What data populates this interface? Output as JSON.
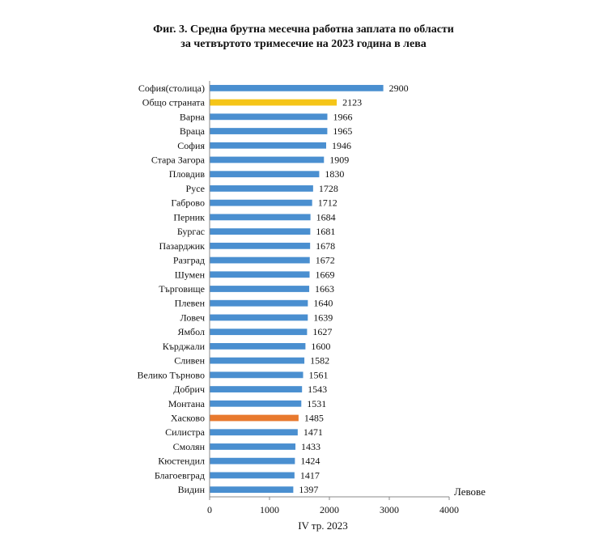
{
  "chart_data": {
    "type": "bar",
    "orientation": "horizontal",
    "title": "Фиг. 3. Средна брутна месечна работна заплата по области",
    "subtitle": "за четвъртото тримесечие на 2023 година в лева",
    "categories": [
      "София(столица)",
      "Общо страната",
      "Варна",
      "Враца",
      "София",
      "Стара Загора",
      "Пловдив",
      "Русе",
      "Габрово",
      "Перник",
      "Бургас",
      "Пазарджик",
      "Разград",
      "Шумен",
      "Търговище",
      "Плевен",
      "Ловеч",
      "Ямбол",
      "Кърджали",
      "Сливен",
      "Велико Търново",
      "Добрич",
      "Монтана",
      "Хасково",
      "Силистра",
      "Смолян",
      "Кюстендил",
      "Благоевград",
      "Видин"
    ],
    "values": [
      2900,
      2123,
      1966,
      1965,
      1946,
      1909,
      1830,
      1728,
      1712,
      1684,
      1681,
      1678,
      1672,
      1669,
      1663,
      1640,
      1639,
      1627,
      1600,
      1582,
      1561,
      1543,
      1531,
      1485,
      1471,
      1433,
      1424,
      1417,
      1397
    ],
    "data_labels": [
      "2900",
      "2123",
      "1966",
      "1965",
      "1946",
      "1909",
      "1830",
      "1728",
      "1712",
      "1684",
      "1681",
      "1678",
      "1672",
      "1669",
      "1663",
      "1640",
      "1639",
      "1627",
      "1600",
      "1582",
      "1561",
      "1543",
      "1531",
      "1485",
      "1471",
      "1433",
      "1424",
      "1417",
      "1397"
    ],
    "xlim": [
      0,
      4000
    ],
    "xticks": [
      0,
      1000,
      2000,
      3000,
      4000
    ],
    "tick_labels": [
      "0",
      "1000",
      "2000",
      "3000",
      "4000"
    ],
    "xlabel": "IV тр. 2023",
    "unit_label": "Левове",
    "grid": false,
    "colors": {
      "default": "#4a8fd0",
      "highlight_total": "#f5c518",
      "highlight_region": "#e8792e",
      "axis": "#888888"
    },
    "highlights": {
      "Общо страната": "highlight_total",
      "Хасково": "highlight_region"
    }
  }
}
